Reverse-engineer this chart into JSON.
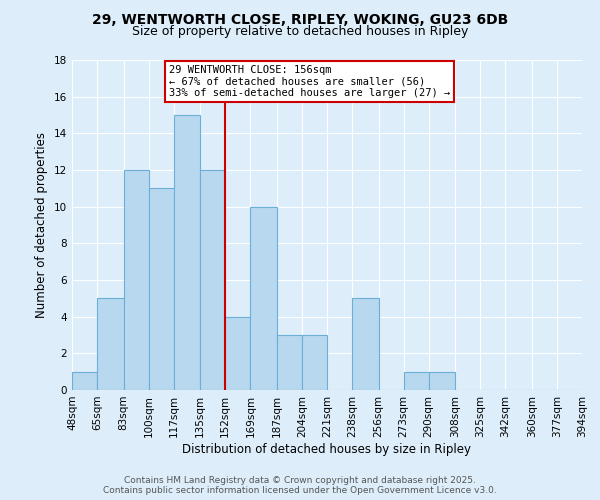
{
  "title": "29, WENTWORTH CLOSE, RIPLEY, WOKING, GU23 6DB",
  "subtitle": "Size of property relative to detached houses in Ripley",
  "xlabel": "Distribution of detached houses by size in Ripley",
  "ylabel": "Number of detached properties",
  "bar_edges": [
    48,
    65,
    83,
    100,
    117,
    135,
    152,
    169,
    187,
    204,
    221,
    238,
    256,
    273,
    290,
    308,
    325,
    342,
    360,
    377,
    394
  ],
  "bar_heights": [
    1,
    5,
    12,
    11,
    15,
    12,
    4,
    10,
    3,
    3,
    0,
    5,
    0,
    1,
    1,
    0,
    0,
    0,
    0,
    0
  ],
  "tick_labels": [
    "48sqm",
    "65sqm",
    "83sqm",
    "100sqm",
    "117sqm",
    "135sqm",
    "152sqm",
    "169sqm",
    "187sqm",
    "204sqm",
    "221sqm",
    "238sqm",
    "256sqm",
    "273sqm",
    "290sqm",
    "308sqm",
    "325sqm",
    "342sqm",
    "360sqm",
    "377sqm",
    "394sqm"
  ],
  "bar_color": "#b8d8f0",
  "bar_edge_color": "#6baed6",
  "vline_x": 152,
  "vline_color": "#cc0000",
  "annotation_title": "29 WENTWORTH CLOSE: 156sqm",
  "annotation_line1": "← 67% of detached houses are smaller (56)",
  "annotation_line2": "33% of semi-detached houses are larger (27) →",
  "annotation_box_color": "#ffffff",
  "annotation_box_edge": "#cc0000",
  "ylim": [
    0,
    18
  ],
  "yticks": [
    0,
    2,
    4,
    6,
    8,
    10,
    12,
    14,
    16,
    18
  ],
  "footer1": "Contains HM Land Registry data © Crown copyright and database right 2025.",
  "footer2": "Contains public sector information licensed under the Open Government Licence v3.0.",
  "bg_color": "#ddeefa",
  "grid_color": "#ffffff",
  "title_fontsize": 10,
  "subtitle_fontsize": 9,
  "axis_label_fontsize": 8.5,
  "tick_fontsize": 7.5,
  "footer_fontsize": 6.5
}
